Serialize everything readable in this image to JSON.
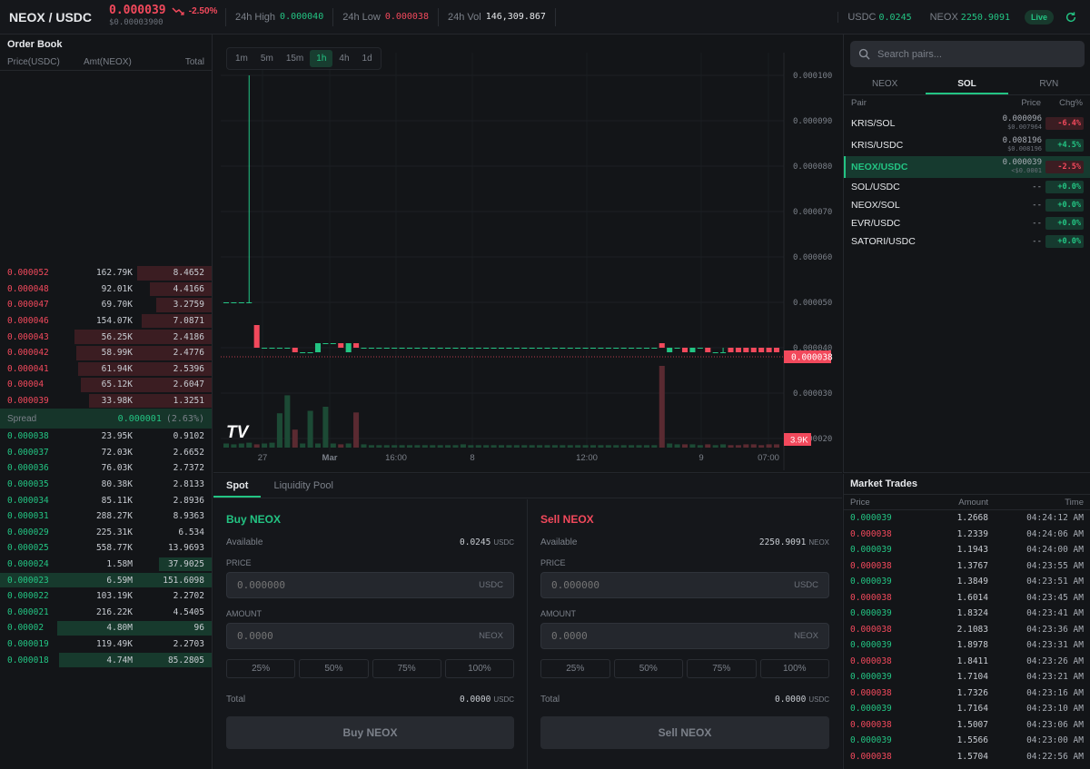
{
  "header": {
    "pair": "NEOX / USDC",
    "price": "0.000039",
    "change": "-2.50%",
    "price_usd": "$0.00003900",
    "high_label": "24h High",
    "high": "0.000040",
    "low_label": "24h Low",
    "low": "0.000038",
    "vol_label": "24h Vol",
    "vol": "146,309.867",
    "bal1_label": "USDC",
    "bal1": "0.0245",
    "bal2_label": "NEOX",
    "bal2": "2250.9091",
    "live": "Live",
    "colors": {
      "up": "#23c483",
      "down": "#f2495c"
    }
  },
  "orderbook": {
    "title": "Order Book",
    "columns": [
      "Price(USDC)",
      "Amt(NEOX)",
      "Total"
    ],
    "asks": [
      {
        "price": "0.000052",
        "amount": "162.79K",
        "total": "8.4652",
        "depth": 0.35
      },
      {
        "price": "0.000048",
        "amount": "92.01K",
        "total": "4.4166",
        "depth": 0.29
      },
      {
        "price": "0.000047",
        "amount": "69.70K",
        "total": "3.2759",
        "depth": 0.26
      },
      {
        "price": "0.000046",
        "amount": "154.07K",
        "total": "7.0871",
        "depth": 0.33
      },
      {
        "price": "0.000043",
        "amount": "56.25K",
        "total": "2.4186",
        "depth": 0.65
      },
      {
        "price": "0.000042",
        "amount": "58.99K",
        "total": "2.4776",
        "depth": 0.64
      },
      {
        "price": "0.000041",
        "amount": "61.94K",
        "total": "2.5396",
        "depth": 0.63
      },
      {
        "price": "0.00004",
        "amount": "65.12K",
        "total": "2.6047",
        "depth": 0.62
      },
      {
        "price": "0.000039",
        "amount": "33.98K",
        "total": "1.3251",
        "depth": 0.58
      }
    ],
    "spread_label": "Spread",
    "spread_value": "0.000001",
    "spread_pct": "(2.63%)",
    "bids": [
      {
        "price": "0.000038",
        "amount": "23.95K",
        "total": "0.9102",
        "depth": 0.0
      },
      {
        "price": "0.000037",
        "amount": "72.03K",
        "total": "2.6652",
        "depth": 0.0
      },
      {
        "price": "0.000036",
        "amount": "76.03K",
        "total": "2.7372",
        "depth": 0.0
      },
      {
        "price": "0.000035",
        "amount": "80.38K",
        "total": "2.8133",
        "depth": 0.0
      },
      {
        "price": "0.000034",
        "amount": "85.11K",
        "total": "2.8936",
        "depth": 0.0
      },
      {
        "price": "0.000031",
        "amount": "288.27K",
        "total": "8.9363",
        "depth": 0.0
      },
      {
        "price": "0.000029",
        "amount": "225.31K",
        "total": "6.534",
        "depth": 0.0
      },
      {
        "price": "0.000025",
        "amount": "558.77K",
        "total": "13.9693",
        "depth": 0.0
      },
      {
        "price": "0.000024",
        "amount": "1.58M",
        "total": "37.9025",
        "depth": 0.25
      },
      {
        "price": "0.000023",
        "amount": "6.59M",
        "total": "151.6098",
        "depth": 1.0
      },
      {
        "price": "0.000022",
        "amount": "103.19K",
        "total": "2.2702",
        "depth": 0.0
      },
      {
        "price": "0.000021",
        "amount": "216.22K",
        "total": "4.5405",
        "depth": 0.0
      },
      {
        "price": "0.00002",
        "amount": "4.80M",
        "total": "96",
        "depth": 0.73
      },
      {
        "price": "0.000019",
        "amount": "119.49K",
        "total": "2.2703",
        "depth": 0.0
      },
      {
        "price": "0.000018",
        "amount": "4.74M",
        "total": "85.2805",
        "depth": 0.72
      }
    ]
  },
  "chart": {
    "timeframes": [
      "1m",
      "5m",
      "15m",
      "1h",
      "4h",
      "1d"
    ],
    "active_timeframe": "1h",
    "y_ticks": [
      "0.000100",
      "0.000090",
      "0.000080",
      "0.000070",
      "0.000060",
      "0.000050",
      "0.000040",
      "0.000030",
      "0.000020"
    ],
    "x_ticks": [
      "27",
      "Mar",
      "16:00",
      "8",
      "12:00",
      "9",
      "07:00"
    ],
    "last_price_tag": "0.000038",
    "volume_tag": "3.9K",
    "logo": "TV"
  },
  "chart_data": {
    "type": "candlestick",
    "y_range": [
      1.7e-05,
      0.000105
    ],
    "last_price": 3.8e-05,
    "candles": [
      {
        "o": 5e-05,
        "h": 5e-05,
        "l": 5e-05,
        "c": 5e-05,
        "v": 0.05
      },
      {
        "o": 5e-05,
        "h": 5e-05,
        "l": 5e-05,
        "c": 5e-05,
        "v": 0.04
      },
      {
        "o": 5e-05,
        "h": 5e-05,
        "l": 5e-05,
        "c": 5e-05,
        "v": 0.05
      },
      {
        "o": 5e-05,
        "h": 0.0001,
        "l": 5e-05,
        "c": 5e-05,
        "v": 0.06
      },
      {
        "o": 4.5e-05,
        "h": 4.5e-05,
        "l": 4e-05,
        "c": 4e-05,
        "v": 0.04
      },
      {
        "o": 4e-05,
        "h": 4e-05,
        "l": 4e-05,
        "c": 4e-05,
        "v": 0.05
      },
      {
        "o": 4e-05,
        "h": 4e-05,
        "l": 4e-05,
        "c": 4e-05,
        "v": 0.06
      },
      {
        "o": 4e-05,
        "h": 4e-05,
        "l": 4e-05,
        "c": 4e-05,
        "v": 0.42
      },
      {
        "o": 4e-05,
        "h": 4e-05,
        "l": 4e-05,
        "c": 4e-05,
        "v": 0.64
      },
      {
        "o": 4e-05,
        "h": 4e-05,
        "l": 3.9e-05,
        "c": 3.9e-05,
        "v": 0.22
      },
      {
        "o": 3.9e-05,
        "h": 3.9e-05,
        "l": 3.9e-05,
        "c": 3.9e-05,
        "v": 0.05
      },
      {
        "o": 3.9e-05,
        "h": 3.9e-05,
        "l": 3.9e-05,
        "c": 3.9e-05,
        "v": 0.45
      },
      {
        "o": 3.9e-05,
        "h": 4.1e-05,
        "l": 3.9e-05,
        "c": 4.1e-05,
        "v": 0.05
      },
      {
        "o": 4.1e-05,
        "h": 4.1e-05,
        "l": 4.1e-05,
        "c": 4.1e-05,
        "v": 0.5
      },
      {
        "o": 4.1e-05,
        "h": 4.1e-05,
        "l": 4.1e-05,
        "c": 4.1e-05,
        "v": 0.05
      },
      {
        "o": 4.1e-05,
        "h": 4.1e-05,
        "l": 4e-05,
        "c": 4e-05,
        "v": 0.04
      },
      {
        "o": 3.9e-05,
        "h": 4.1e-05,
        "l": 3.9e-05,
        "c": 4.1e-05,
        "v": 0.05
      },
      {
        "o": 4.1e-05,
        "h": 4.1e-05,
        "l": 4e-05,
        "c": 4e-05,
        "v": 0.43
      },
      {
        "o": 4e-05,
        "h": 4e-05,
        "l": 4e-05,
        "c": 4e-05,
        "v": 0.04
      },
      {
        "o": 4e-05,
        "h": 4e-05,
        "l": 4e-05,
        "c": 4e-05,
        "v": 0.03
      },
      {
        "o": 4e-05,
        "h": 4e-05,
        "l": 4e-05,
        "c": 4e-05,
        "v": 0.03
      },
      {
        "o": 4e-05,
        "h": 4e-05,
        "l": 4e-05,
        "c": 4e-05,
        "v": 0.03
      },
      {
        "o": 4e-05,
        "h": 4e-05,
        "l": 4e-05,
        "c": 4e-05,
        "v": 0.03
      },
      {
        "o": 4e-05,
        "h": 4e-05,
        "l": 4e-05,
        "c": 4e-05,
        "v": 0.03
      },
      {
        "o": 4e-05,
        "h": 4e-05,
        "l": 4e-05,
        "c": 4e-05,
        "v": 0.03
      },
      {
        "o": 4e-05,
        "h": 4e-05,
        "l": 4e-05,
        "c": 4e-05,
        "v": 0.03
      },
      {
        "o": 4e-05,
        "h": 4e-05,
        "l": 4e-05,
        "c": 4e-05,
        "v": 0.03
      },
      {
        "o": 4e-05,
        "h": 4e-05,
        "l": 4e-05,
        "c": 4e-05,
        "v": 0.03
      },
      {
        "o": 4e-05,
        "h": 4e-05,
        "l": 4e-05,
        "c": 4e-05,
        "v": 0.03
      },
      {
        "o": 4e-05,
        "h": 4e-05,
        "l": 4e-05,
        "c": 4e-05,
        "v": 0.03
      },
      {
        "o": 4e-05,
        "h": 4e-05,
        "l": 4e-05,
        "c": 4e-05,
        "v": 0.03
      },
      {
        "o": 4e-05,
        "h": 4e-05,
        "l": 4e-05,
        "c": 4e-05,
        "v": 0.04
      },
      {
        "o": 4e-05,
        "h": 4e-05,
        "l": 4e-05,
        "c": 4e-05,
        "v": 0.03
      },
      {
        "o": 4e-05,
        "h": 4e-05,
        "l": 4e-05,
        "c": 4e-05,
        "v": 0.03
      },
      {
        "o": 4e-05,
        "h": 4e-05,
        "l": 4e-05,
        "c": 4e-05,
        "v": 0.03
      },
      {
        "o": 4e-05,
        "h": 4e-05,
        "l": 4e-05,
        "c": 4e-05,
        "v": 0.03
      },
      {
        "o": 4e-05,
        "h": 4e-05,
        "l": 4e-05,
        "c": 4e-05,
        "v": 0.03
      },
      {
        "o": 4e-05,
        "h": 4e-05,
        "l": 4e-05,
        "c": 4e-05,
        "v": 0.03
      },
      {
        "o": 4e-05,
        "h": 4e-05,
        "l": 4e-05,
        "c": 4e-05,
        "v": 0.03
      },
      {
        "o": 4e-05,
        "h": 4e-05,
        "l": 4e-05,
        "c": 4e-05,
        "v": 0.03
      },
      {
        "o": 4e-05,
        "h": 4e-05,
        "l": 4e-05,
        "c": 4e-05,
        "v": 0.03
      },
      {
        "o": 4e-05,
        "h": 4e-05,
        "l": 4e-05,
        "c": 4e-05,
        "v": 0.03
      },
      {
        "o": 4e-05,
        "h": 4e-05,
        "l": 4e-05,
        "c": 4e-05,
        "v": 0.03
      },
      {
        "o": 4e-05,
        "h": 4e-05,
        "l": 4e-05,
        "c": 4e-05,
        "v": 0.03
      },
      {
        "o": 4e-05,
        "h": 4e-05,
        "l": 4e-05,
        "c": 4e-05,
        "v": 0.03
      },
      {
        "o": 4e-05,
        "h": 4e-05,
        "l": 4e-05,
        "c": 4e-05,
        "v": 0.03
      },
      {
        "o": 4e-05,
        "h": 4e-05,
        "l": 4e-05,
        "c": 4e-05,
        "v": 0.03
      },
      {
        "o": 4e-05,
        "h": 4e-05,
        "l": 4e-05,
        "c": 4e-05,
        "v": 0.03
      },
      {
        "o": 4e-05,
        "h": 4e-05,
        "l": 4e-05,
        "c": 4e-05,
        "v": 0.03
      },
      {
        "o": 4e-05,
        "h": 4e-05,
        "l": 4e-05,
        "c": 4e-05,
        "v": 0.03
      },
      {
        "o": 4e-05,
        "h": 4e-05,
        "l": 4e-05,
        "c": 4e-05,
        "v": 0.03
      },
      {
        "o": 4e-05,
        "h": 4e-05,
        "l": 4e-05,
        "c": 4e-05,
        "v": 0.03
      },
      {
        "o": 4e-05,
        "h": 4e-05,
        "l": 4e-05,
        "c": 4e-05,
        "v": 0.03
      },
      {
        "o": 4e-05,
        "h": 4e-05,
        "l": 4e-05,
        "c": 4e-05,
        "v": 0.03
      },
      {
        "o": 4e-05,
        "h": 4e-05,
        "l": 4e-05,
        "c": 4e-05,
        "v": 0.03
      },
      {
        "o": 4e-05,
        "h": 4e-05,
        "l": 4e-05,
        "c": 4e-05,
        "v": 0.03
      },
      {
        "o": 4e-05,
        "h": 4e-05,
        "l": 4e-05,
        "c": 4e-05,
        "v": 0.03
      },
      {
        "o": 4.1e-05,
        "h": 4.1e-05,
        "l": 4e-05,
        "c": 4e-05,
        "v": 1.0
      },
      {
        "o": 3.9e-05,
        "h": 4e-05,
        "l": 3.9e-05,
        "c": 4e-05,
        "v": 0.05
      },
      {
        "o": 4e-05,
        "h": 4e-05,
        "l": 4e-05,
        "c": 4e-05,
        "v": 0.04
      },
      {
        "o": 4e-05,
        "h": 4e-05,
        "l": 3.9e-05,
        "c": 3.9e-05,
        "v": 0.04
      },
      {
        "o": 3.9e-05,
        "h": 4e-05,
        "l": 3.9e-05,
        "c": 4e-05,
        "v": 0.04
      },
      {
        "o": 4e-05,
        "h": 4e-05,
        "l": 4e-05,
        "c": 4e-05,
        "v": 0.03
      },
      {
        "o": 4e-05,
        "h": 4e-05,
        "l": 3.9e-05,
        "c": 3.9e-05,
        "v": 0.04
      },
      {
        "o": 3.9e-05,
        "h": 3.9e-05,
        "l": 3.9e-05,
        "c": 3.9e-05,
        "v": 0.03
      },
      {
        "o": 3.9e-05,
        "h": 4e-05,
        "l": 3.9e-05,
        "c": 3.9e-05,
        "v": 0.04
      },
      {
        "o": 4e-05,
        "h": 4e-05,
        "l": 3.9e-05,
        "c": 3.9e-05,
        "v": 0.03
      },
      {
        "o": 4e-05,
        "h": 4e-05,
        "l": 3.9e-05,
        "c": 3.9e-05,
        "v": 0.03
      },
      {
        "o": 4e-05,
        "h": 4e-05,
        "l": 3.9e-05,
        "c": 3.9e-05,
        "v": 0.04
      },
      {
        "o": 4e-05,
        "h": 4e-05,
        "l": 3.9e-05,
        "c": 3.9e-05,
        "v": 0.04
      },
      {
        "o": 4e-05,
        "h": 4e-05,
        "l": 3.9e-05,
        "c": 3.9e-05,
        "v": 0.03
      },
      {
        "o": 4e-05,
        "h": 4e-05,
        "l": 3.9e-05,
        "c": 3.9e-05,
        "v": 0.04
      },
      {
        "o": 4e-05,
        "h": 4e-05,
        "l": 3.9e-05,
        "c": 3.9e-05,
        "v": 0.04
      }
    ]
  },
  "trade": {
    "tabs": [
      "Spot",
      "Liquidity Pool"
    ],
    "buy": {
      "title": "Buy NEOX",
      "available_label": "Available",
      "available": "0.0245",
      "available_unit": "USDC",
      "price_label": "PRICE",
      "price_placeholder": "0.000000",
      "price_unit": "USDC",
      "amount_label": "AMOUNT",
      "amount_placeholder": "0.0000",
      "amount_unit": "NEOX",
      "pcts": [
        "25%",
        "50%",
        "75%",
        "100%"
      ],
      "total_label": "Total",
      "total": "0.0000",
      "total_unit": "USDC",
      "submit": "Buy NEOX"
    },
    "sell": {
      "title": "Sell NEOX",
      "available_label": "Available",
      "available": "2250.9091",
      "available_unit": "NEOX",
      "price_label": "PRICE",
      "price_placeholder": "0.000000",
      "price_unit": "USDC",
      "amount_label": "AMOUNT",
      "amount_placeholder": "0.0000",
      "amount_unit": "NEOX",
      "pcts": [
        "25%",
        "50%",
        "75%",
        "100%"
      ],
      "total_label": "Total",
      "total": "0.0000",
      "total_unit": "USDC",
      "submit": "Sell NEOX"
    }
  },
  "pairs": {
    "search_placeholder": "Search pairs...",
    "tabs": [
      "NEOX",
      "SOL",
      "RVN"
    ],
    "active_tab": "SOL",
    "columns": [
      "Pair",
      "Price",
      "Chg%"
    ],
    "rows": [
      {
        "name": "KRIS/SOL",
        "price": "0.000096",
        "sub": "$0.007964",
        "chg": "-6.4%",
        "dir": "down"
      },
      {
        "name": "KRIS/USDC",
        "price": "0.008196",
        "sub": "$0.008196",
        "chg": "+4.5%",
        "dir": "up"
      },
      {
        "name": "NEOX/USDC",
        "price": "0.000039",
        "sub": "<$0.0001",
        "chg": "-2.5%",
        "dir": "down",
        "selected": true
      },
      {
        "name": "SOL/USDC",
        "price": "--",
        "sub": "",
        "chg": "+0.0%",
        "dir": "up"
      },
      {
        "name": "NEOX/SOL",
        "price": "--",
        "sub": "",
        "chg": "+0.0%",
        "dir": "up"
      },
      {
        "name": "EVR/USDC",
        "price": "--",
        "sub": "",
        "chg": "+0.0%",
        "dir": "up"
      },
      {
        "name": "SATORI/USDC",
        "price": "--",
        "sub": "",
        "chg": "+0.0%",
        "dir": "up"
      }
    ]
  },
  "trades": {
    "title": "Market Trades",
    "columns": [
      "Price",
      "Amount",
      "Time"
    ],
    "rows": [
      {
        "price": "0.000039",
        "amount": "1.2668",
        "time": "04:24:12 AM",
        "side": "buy"
      },
      {
        "price": "0.000038",
        "amount": "1.2339",
        "time": "04:24:06 AM",
        "side": "sell"
      },
      {
        "price": "0.000039",
        "amount": "1.1943",
        "time": "04:24:00 AM",
        "side": "buy"
      },
      {
        "price": "0.000038",
        "amount": "1.3767",
        "time": "04:23:55 AM",
        "side": "sell"
      },
      {
        "price": "0.000039",
        "amount": "1.3849",
        "time": "04:23:51 AM",
        "side": "buy"
      },
      {
        "price": "0.000038",
        "amount": "1.6014",
        "time": "04:23:45 AM",
        "side": "sell"
      },
      {
        "price": "0.000039",
        "amount": "1.8324",
        "time": "04:23:41 AM",
        "side": "buy"
      },
      {
        "price": "0.000038",
        "amount": "2.1083",
        "time": "04:23:36 AM",
        "side": "sell"
      },
      {
        "price": "0.000039",
        "amount": "1.8978",
        "time": "04:23:31 AM",
        "side": "buy"
      },
      {
        "price": "0.000038",
        "amount": "1.8411",
        "time": "04:23:26 AM",
        "side": "sell"
      },
      {
        "price": "0.000039",
        "amount": "1.7104",
        "time": "04:23:21 AM",
        "side": "buy"
      },
      {
        "price": "0.000038",
        "amount": "1.7326",
        "time": "04:23:16 AM",
        "side": "sell"
      },
      {
        "price": "0.000039",
        "amount": "1.7164",
        "time": "04:23:10 AM",
        "side": "buy"
      },
      {
        "price": "0.000038",
        "amount": "1.5007",
        "time": "04:23:06 AM",
        "side": "sell"
      },
      {
        "price": "0.000039",
        "amount": "1.5566",
        "time": "04:23:00 AM",
        "side": "buy"
      },
      {
        "price": "0.000038",
        "amount": "1.5704",
        "time": "04:22:56 AM",
        "side": "sell"
      }
    ]
  }
}
